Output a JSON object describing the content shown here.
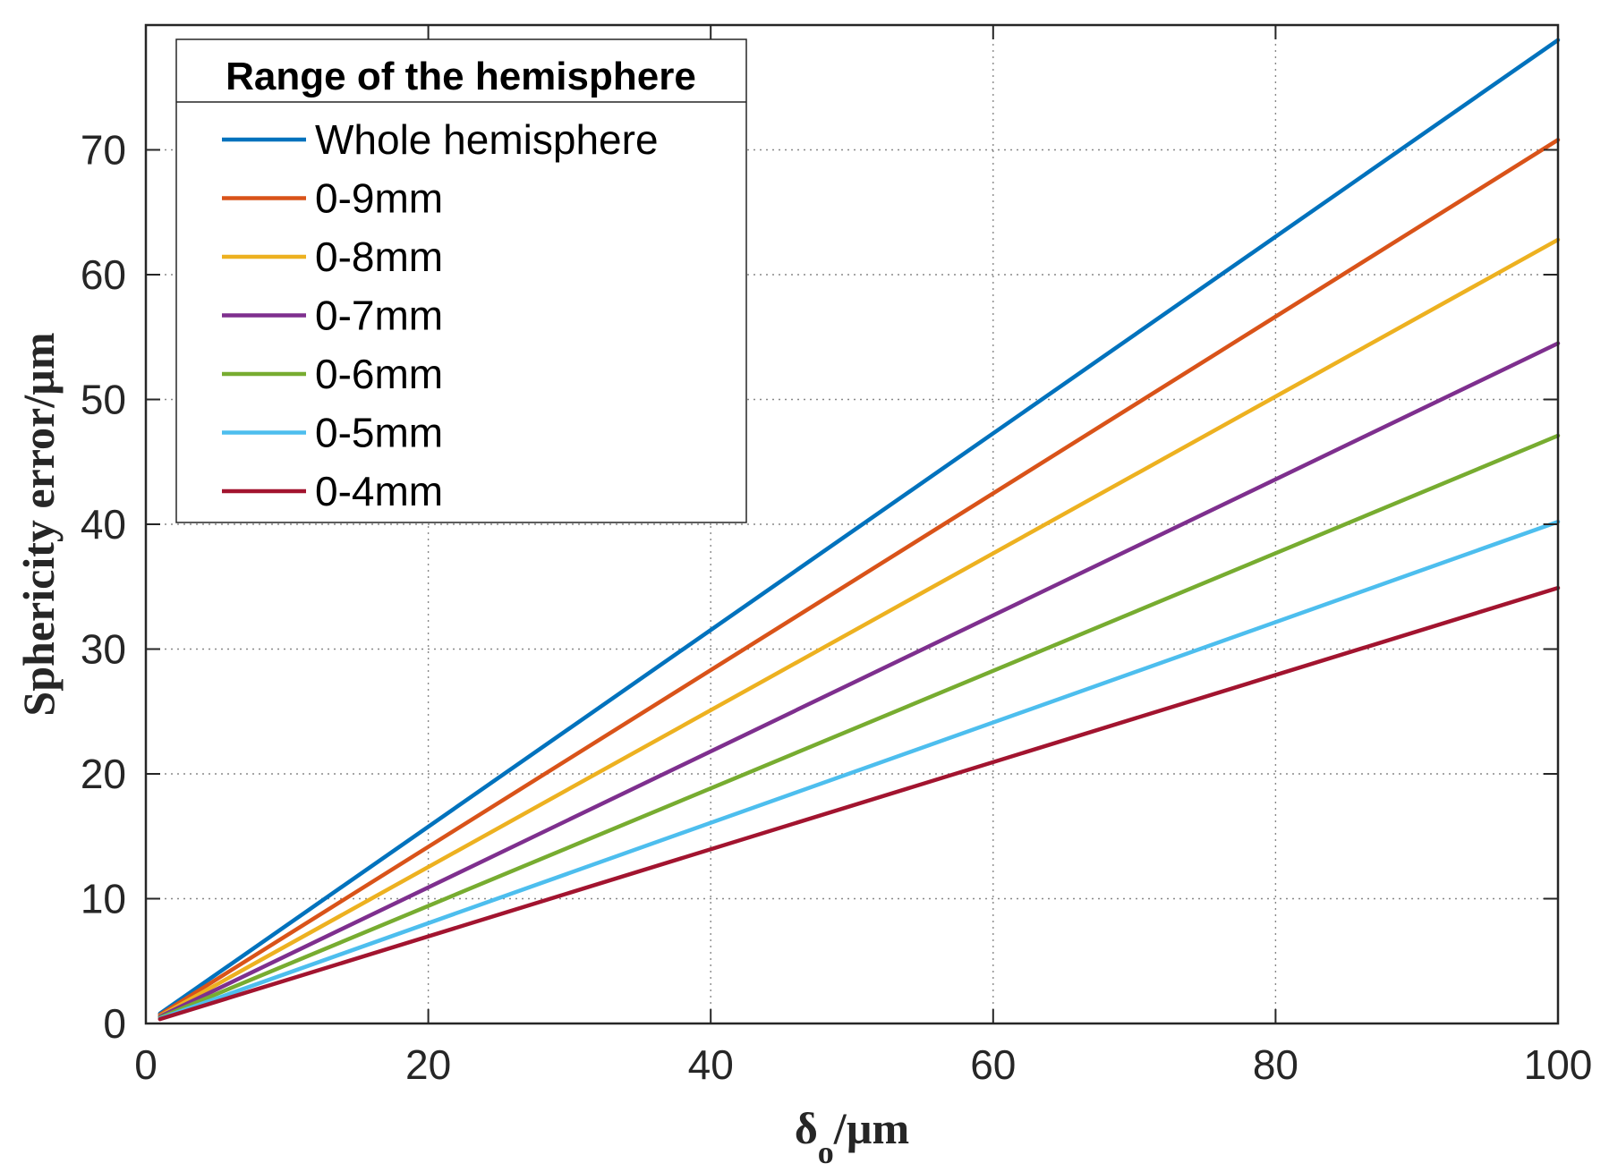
{
  "chart_data": {
    "type": "line",
    "x": [
      1,
      100
    ],
    "xlabel": "δ",
    "xlabel_subscript": "o",
    "xlabel_suffix": "/µm",
    "ylabel": "Sphericity error/µm",
    "xlim": [
      0,
      100
    ],
    "ylim": [
      0,
      80
    ],
    "xticks": [
      0,
      20,
      40,
      60,
      80,
      100
    ],
    "yticks": [
      0,
      10,
      20,
      30,
      40,
      50,
      60,
      70
    ],
    "grid": true,
    "legend": {
      "title": "Range of the hemisphere",
      "placement": "top-left"
    },
    "series": [
      {
        "name": "Whole hemisphere",
        "color": "#0072BD",
        "values": [
          0.8,
          78.8
        ]
      },
      {
        "name": "0-9mm",
        "color": "#D95319",
        "values": [
          0.7,
          70.8
        ]
      },
      {
        "name": "0-8mm",
        "color": "#EDB120",
        "values": [
          0.6,
          62.8
        ]
      },
      {
        "name": "0-7mm",
        "color": "#7E2F8E",
        "values": [
          0.55,
          54.5
        ]
      },
      {
        "name": "0-6mm",
        "color": "#77AC30",
        "values": [
          0.47,
          47.1
        ]
      },
      {
        "name": "0-5mm",
        "color": "#4DBEEE",
        "values": [
          0.4,
          40.2
        ]
      },
      {
        "name": "0-4mm",
        "color": "#A2142F",
        "values": [
          0.35,
          34.9
        ]
      }
    ]
  }
}
